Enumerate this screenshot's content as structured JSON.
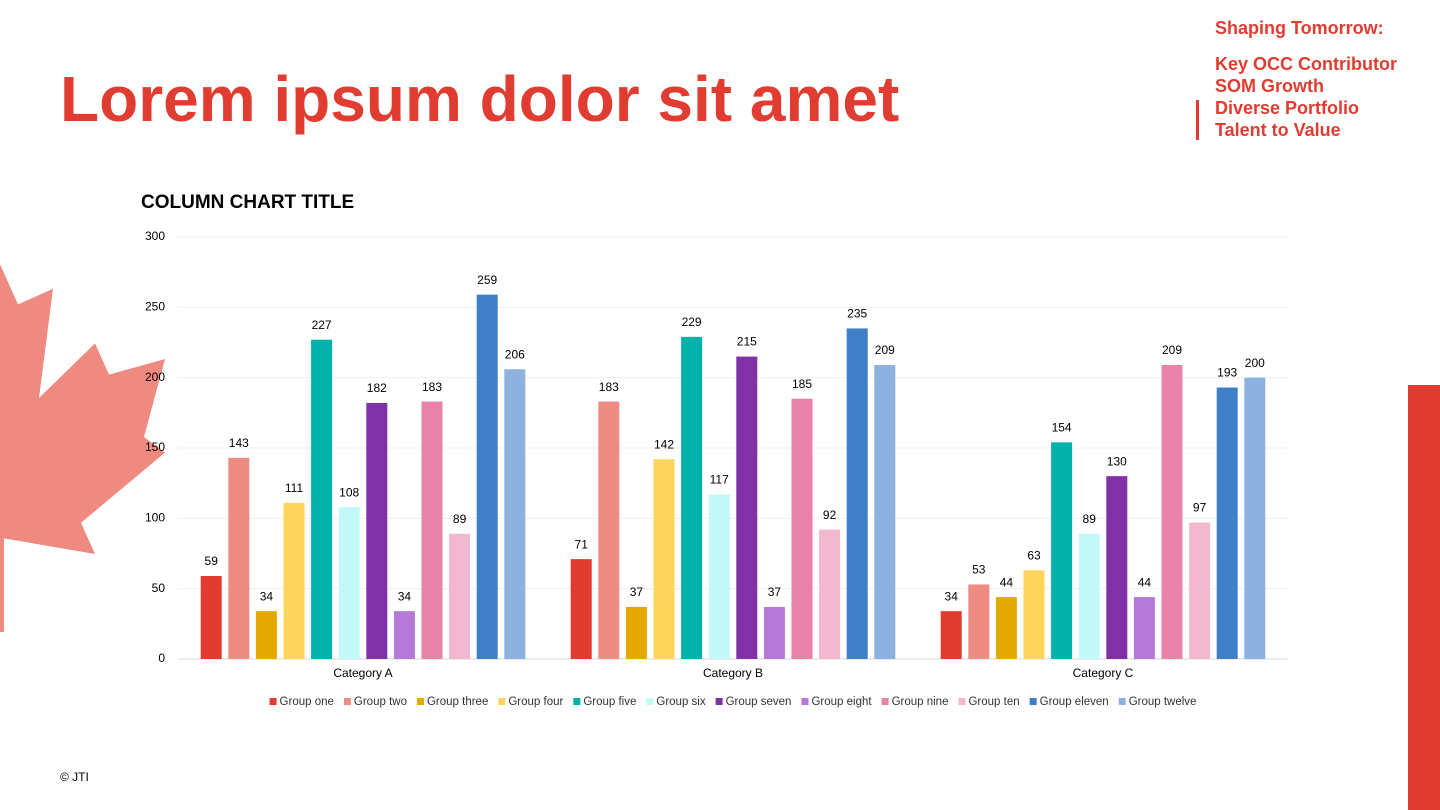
{
  "header": {
    "title": "Lorem ipsum dolor sit amet"
  },
  "sidebar": {
    "heading": "Shaping Tomorrow:",
    "items": [
      "Key OCC Contributor",
      "SOM Growth",
      "Diverse Portfolio",
      "Talent to Value"
    ]
  },
  "footer": {
    "text": "© JTI"
  },
  "chart_data": {
    "type": "bar",
    "title": "COLUMN CHART TITLE",
    "categories": [
      "Category A",
      "Category B",
      "Category C"
    ],
    "series": [
      {
        "name": "Group one",
        "color": "#e03c31",
        "values": [
          59,
          71,
          34
        ]
      },
      {
        "name": "Group two",
        "color": "#ee8c84",
        "values": [
          143,
          183,
          53
        ]
      },
      {
        "name": "Group three",
        "color": "#e5a800",
        "values": [
          34,
          37,
          44
        ]
      },
      {
        "name": "Group four",
        "color": "#ffd45c",
        "values": [
          111,
          142,
          63
        ]
      },
      {
        "name": "Group five",
        "color": "#00b2a9",
        "values": [
          227,
          229,
          154
        ]
      },
      {
        "name": "Group six",
        "color": "#c2f8f8",
        "values": [
          108,
          117,
          89
        ]
      },
      {
        "name": "Group seven",
        "color": "#8031a7",
        "values": [
          182,
          215,
          130
        ]
      },
      {
        "name": "Group eight",
        "color": "#b57ad8",
        "values": [
          34,
          37,
          44
        ]
      },
      {
        "name": "Group nine",
        "color": "#e882a8",
        "values": [
          183,
          185,
          209
        ]
      },
      {
        "name": "Group ten",
        "color": "#f2b8cf",
        "values": [
          89,
          92,
          97
        ]
      },
      {
        "name": "Group eleven",
        "color": "#3f7fc8",
        "values": [
          259,
          235,
          193
        ]
      },
      {
        "name": "Group twelve",
        "color": "#8db2e0",
        "values": [
          206,
          209,
          200
        ]
      }
    ],
    "ylim": [
      0,
      300
    ],
    "yticks": [
      0,
      50,
      100,
      150,
      200,
      250,
      300
    ],
    "grid": true,
    "legend": "bottom"
  }
}
